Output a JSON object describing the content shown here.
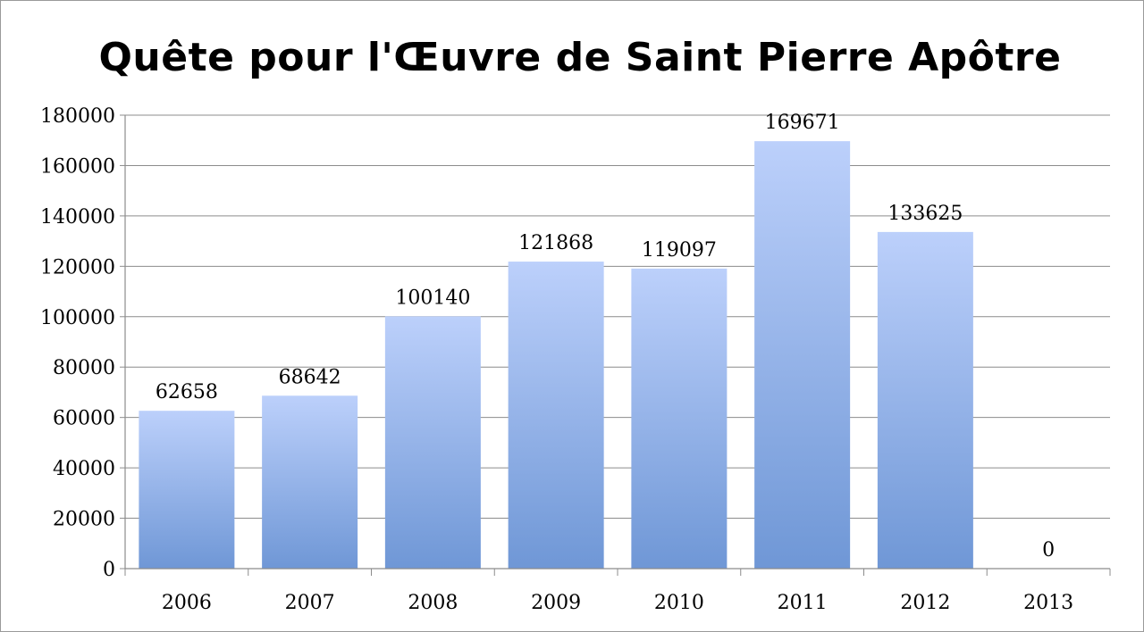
{
  "chart_data": {
    "type": "bar",
    "title": "Quête pour l'Œuvre de Saint Pierre Apôtre",
    "xlabel": "",
    "ylabel": "",
    "categories": [
      "2006",
      "2007",
      "2008",
      "2009",
      "2010",
      "2011",
      "2012",
      "2013"
    ],
    "values": [
      62658,
      68642,
      100140,
      121868,
      119097,
      169671,
      133625,
      0
    ],
    "data_labels": [
      "62658",
      "68642",
      "100140",
      "121868",
      "119097",
      "169671",
      "133625",
      "0"
    ],
    "ylim": [
      0,
      180000
    ],
    "yticks": [
      0,
      20000,
      40000,
      60000,
      80000,
      100000,
      120000,
      140000,
      160000,
      180000
    ],
    "ytick_labels": [
      "0",
      "20000",
      "40000",
      "60000",
      "80000",
      "100000",
      "120000",
      "140000",
      "160000",
      "180000"
    ],
    "grid": true,
    "legend": "none",
    "colors": {
      "bar_top": "#bcd0fb",
      "bar_bottom": "#6f97d6",
      "grid": "#8c8c8c",
      "axis": "#8c8c8c"
    }
  }
}
